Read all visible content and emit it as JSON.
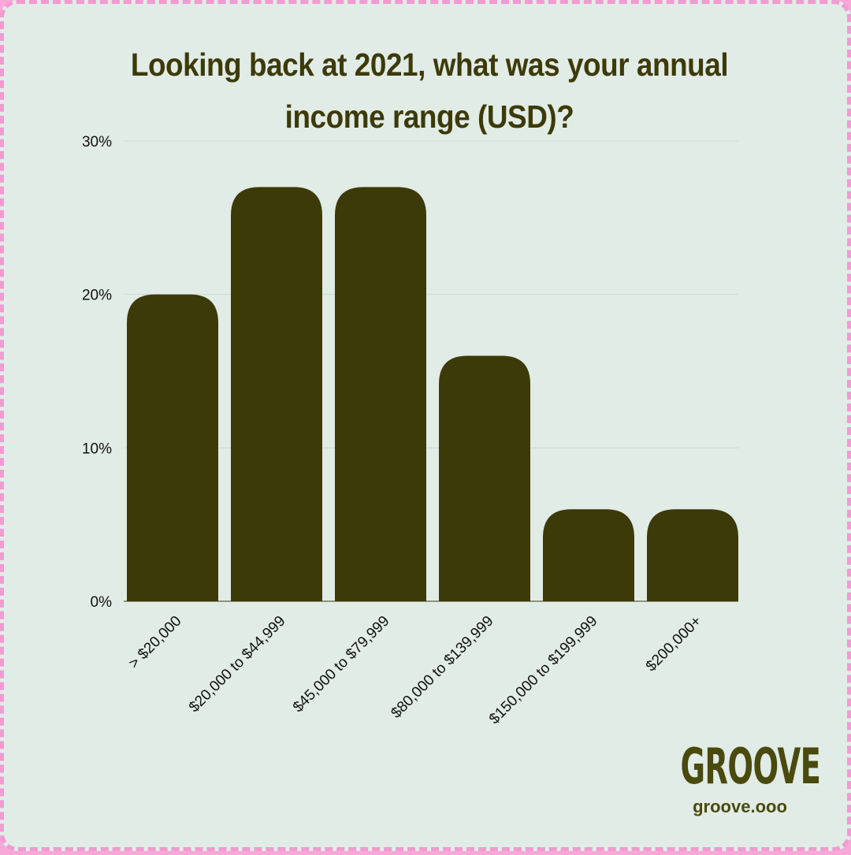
{
  "chart_data": {
    "type": "bar",
    "title": "Looking back at 2021, what was your annual income range (USD)?",
    "categories": [
      "> $20,000",
      "$20,000 to $44,999",
      "$45,000 to $79,999",
      "$80,000 to $139,999",
      "$150,000 to $199,999",
      "$200,000+"
    ],
    "values": [
      20,
      27,
      27,
      16,
      6,
      6
    ],
    "ylim": [
      0,
      30
    ],
    "yticks": [
      0,
      10,
      20,
      30
    ],
    "ytick_labels": [
      "0%",
      "10%",
      "20%",
      "30%"
    ],
    "grid": true,
    "bar_color": "#3d3a0a",
    "background_color": "#e1ece6",
    "border_color": "#f29ad1"
  },
  "brand": {
    "logo": "GROOVE",
    "url": "groove.ooo"
  }
}
